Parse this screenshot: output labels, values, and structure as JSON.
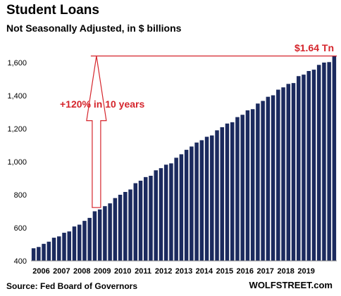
{
  "header": {
    "title": "Student Loans",
    "subtitle": "Not Seasonally Adjusted, in $ billions"
  },
  "footer": {
    "source": "Source: Fed Board of Governors",
    "brand": "WOLFSTREET.com"
  },
  "colors": {
    "bar": "#1b2a5e",
    "annotation": "#d5252c"
  },
  "chart_data": {
    "type": "bar",
    "title": "Student Loans",
    "subtitle": "Not Seasonally Adjusted, in $ billions",
    "xlabel": "",
    "ylabel": "",
    "ylim": [
      400,
      1650
    ],
    "yticks": [
      "400",
      "600",
      "800",
      "1,000",
      "1,200",
      "1,400",
      "1,600"
    ],
    "ytick_values": [
      400,
      600,
      800,
      1000,
      1200,
      1400,
      1600
    ],
    "xticks": [
      "2006",
      "2007",
      "2008",
      "2009",
      "2010",
      "2011",
      "2012",
      "2013",
      "2014",
      "2015",
      "2016",
      "2017",
      "2018",
      "2019"
    ],
    "grid": false,
    "series": [
      {
        "values": [
          476,
          484,
          503,
          516,
          540,
          548,
          570,
          578,
          608,
          619,
          642,
          660,
          700,
          711,
          731,
          748,
          780,
          800,
          817,
          832,
          870,
          885,
          907,
          915,
          948,
          961,
          982,
          990,
          1024,
          1045,
          1072,
          1092,
          1116,
          1130,
          1151,
          1159,
          1190,
          1209,
          1231,
          1239,
          1270,
          1284,
          1311,
          1318,
          1352,
          1368,
          1393,
          1402,
          1436,
          1450,
          1471,
          1476,
          1518,
          1527,
          1549,
          1557,
          1586,
          1600,
          1603,
          1640
        ]
      }
    ],
    "annotations": {
      "end_label": "$1.64 Tn",
      "growth_label": "+120% in 10 years"
    }
  }
}
